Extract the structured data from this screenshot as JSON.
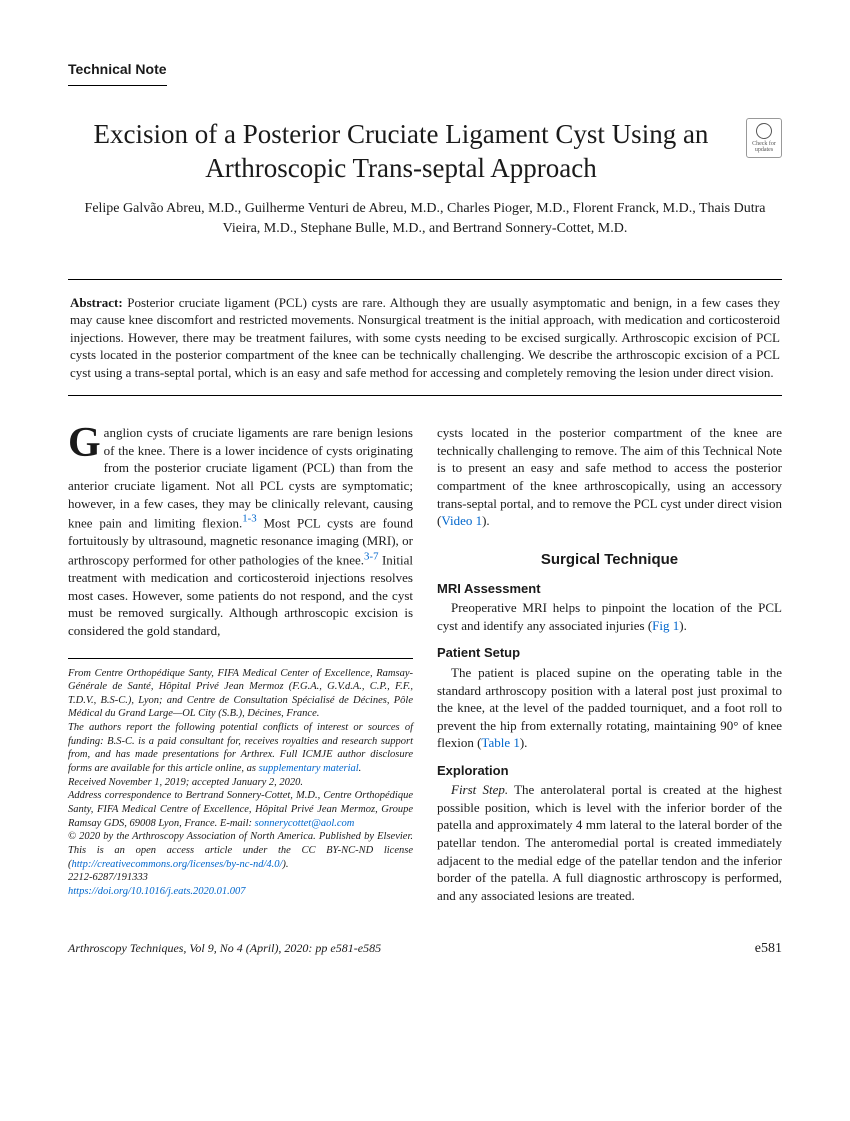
{
  "header": {
    "technical_note_label": "Technical Note"
  },
  "title": "Excision of a Posterior Cruciate Ligament Cyst Using an Arthroscopic Trans-septal Approach",
  "crossmark_label": "Check for updates",
  "authors": "Felipe Galvão Abreu, M.D., Guilherme Venturi de Abreu, M.D., Charles Pioger, M.D., Florent Franck, M.D., Thais Dutra Vieira, M.D., Stephane Bulle, M.D., and Bertrand Sonnery-Cottet, M.D.",
  "abstract": {
    "label": "Abstract:",
    "text": "Posterior cruciate ligament (PCL) cysts are rare. Although they are usually asymptomatic and benign, in a few cases they may cause knee discomfort and restricted movements. Nonsurgical treatment is the initial approach, with medication and corticosteroid injections. However, there may be treatment failures, with some cysts needing to be excised surgically. Arthroscopic excision of PCL cysts located in the posterior compartment of the knee can be technically challenging. We describe the arthroscopic excision of a PCL cyst using a trans-septal portal, which is an easy and safe method for accessing and completely removing the lesion under direct vision."
  },
  "body": {
    "p1_dropcap": "G",
    "p1_a": "anglion cysts of cruciate ligaments are rare benign lesions of the knee. There is a lower incidence of cysts originating from the posterior cruciate ligament (PCL) than from the anterior cruciate ligament. Not all PCL cysts are symptomatic; however, in a few cases, they may be clinically relevant, causing knee pain and limiting flexion.",
    "ref1": "1-3",
    "p1_b": " Most PCL cysts are found fortuitously by ultrasound, magnetic resonance imaging (MRI), or arthroscopy performed for other pathologies of the knee.",
    "ref2": "3-7",
    "p1_c": " Initial treatment with medication and corticosteroid injections resolves most cases. However, some patients do not respond, and the cyst must be removed surgically. Although arthroscopic excision is considered the gold standard,",
    "p2_a": "cysts located in the posterior compartment of the knee are technically challenging to remove. The aim of this Technical Note is to present an easy and safe method to access the posterior compartment of the knee arthroscopically, using an accessory trans-septal portal, and to remove the PCL cyst under direct vision (",
    "video_ref": "Video 1",
    "p2_b": ")."
  },
  "sections": {
    "surgical_technique": "Surgical Technique",
    "mri_assessment": {
      "heading": "MRI Assessment",
      "text_a": "Preoperative MRI helps to pinpoint the location of the PCL cyst and identify any associated injuries (",
      "fig_ref": "Fig 1",
      "text_b": ")."
    },
    "patient_setup": {
      "heading": "Patient Setup",
      "text_a": "The patient is placed supine on the operating table in the standard arthroscopy position with a lateral post just proximal to the knee, at the level of the padded tourniquet, and a foot roll to prevent the hip from externally rotating, maintaining 90° of knee flexion (",
      "table_ref": "Table 1",
      "text_b": ")."
    },
    "exploration": {
      "heading": "Exploration",
      "step_label": "First Step.",
      "text": "The anterolateral portal is created at the highest possible position, which is level with the inferior border of the patella and approximately 4 mm lateral to the lateral border of the patellar tendon. The anteromedial portal is created immediately adjacent to the medial edge of the patellar tendon and the inferior border of the patella. A full diagnostic arthroscopy is performed, and any associated lesions are treated."
    }
  },
  "footnotes": {
    "affiliation": "From Centre Orthopédique Santy, FIFA Medical Center of Excellence, Ramsay-Générale de Santé, Hôpital Privé Jean Mermoz (F.G.A., G.V.d.A., C.P., F.F., T.D.V., B.S-C.), Lyon; and Centre de Consultation Spécialisé de Décines, Pôle Médical du Grand Large—OL City (S.B.), Décines, France.",
    "coi_a": "The authors report the following potential conflicts of interest or sources of funding: B.S-C. is a paid consultant for, receives royalties and research support from, and has made presentations for Arthrex. Full ICMJE author disclosure forms are available for this article online, as ",
    "coi_link": "supplementary material",
    "coi_b": ".",
    "received": "Received November 1, 2019; accepted January 2, 2020.",
    "correspondence_a": "Address correspondence to Bertrand Sonnery-Cottet, M.D., Centre Orthopédique Santy, FIFA Medical Centre of Excellence, Hôpital Privé Jean Mermoz, Groupe Ramsay GDS, 69008 Lyon, France. E-mail: ",
    "correspondence_email": "sonnerycottet@aol.com",
    "copyright_a": "© 2020 by the Arthroscopy Association of North America. Published by Elsevier. This is an open access article under the CC BY-NC-ND license (",
    "copyright_link": "http://creativecommons.org/licenses/by-nc-nd/4.0/",
    "copyright_b": ").",
    "issn": "2212-6287/191333",
    "doi": "https://doi.org/10.1016/j.eats.2020.01.007"
  },
  "footer": {
    "citation": "Arthroscopy Techniques, Vol 9, No 4 (April), 2020: pp e581-e585",
    "page": "e581"
  },
  "colors": {
    "link": "#0066cc",
    "text": "#1a1a1a",
    "border": "#000000"
  }
}
